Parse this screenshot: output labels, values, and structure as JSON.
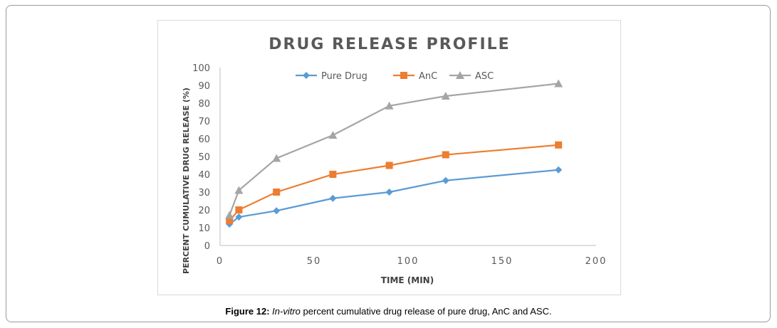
{
  "caption": {
    "label": "Figure 12:",
    "italic": "In-vitro",
    "text": "percent cumulative drug release of pure drug, AnC and ASC."
  },
  "chart_data": {
    "type": "line",
    "title": "DRUG RELEASE PROFILE",
    "xlabel": "TIME (MIN)",
    "ylabel": "PERCENT CUMULATIVE DRUG RELEASE (%)",
    "xlim": [
      0,
      200
    ],
    "ylim": [
      0,
      100
    ],
    "xticks": [
      0,
      50,
      100,
      150,
      200
    ],
    "yticks": [
      0,
      10,
      20,
      30,
      40,
      50,
      60,
      70,
      80,
      90,
      100
    ],
    "grid": false,
    "legend_position": "top",
    "x": [
      5,
      10,
      30,
      60,
      90,
      120,
      180
    ],
    "series": [
      {
        "name": "Pure Drug",
        "marker": "diamond",
        "color": "#5b9bd5",
        "values": [
          12,
          16,
          19.5,
          26.5,
          30,
          36.5,
          42.5
        ]
      },
      {
        "name": "AnC",
        "marker": "square",
        "color": "#ed7d31",
        "values": [
          14,
          20,
          30,
          40,
          45,
          51,
          56.5
        ]
      },
      {
        "name": "ASC",
        "marker": "triangle",
        "color": "#a5a5a5",
        "values": [
          17,
          31,
          49,
          62,
          78.5,
          84,
          91
        ]
      }
    ]
  }
}
